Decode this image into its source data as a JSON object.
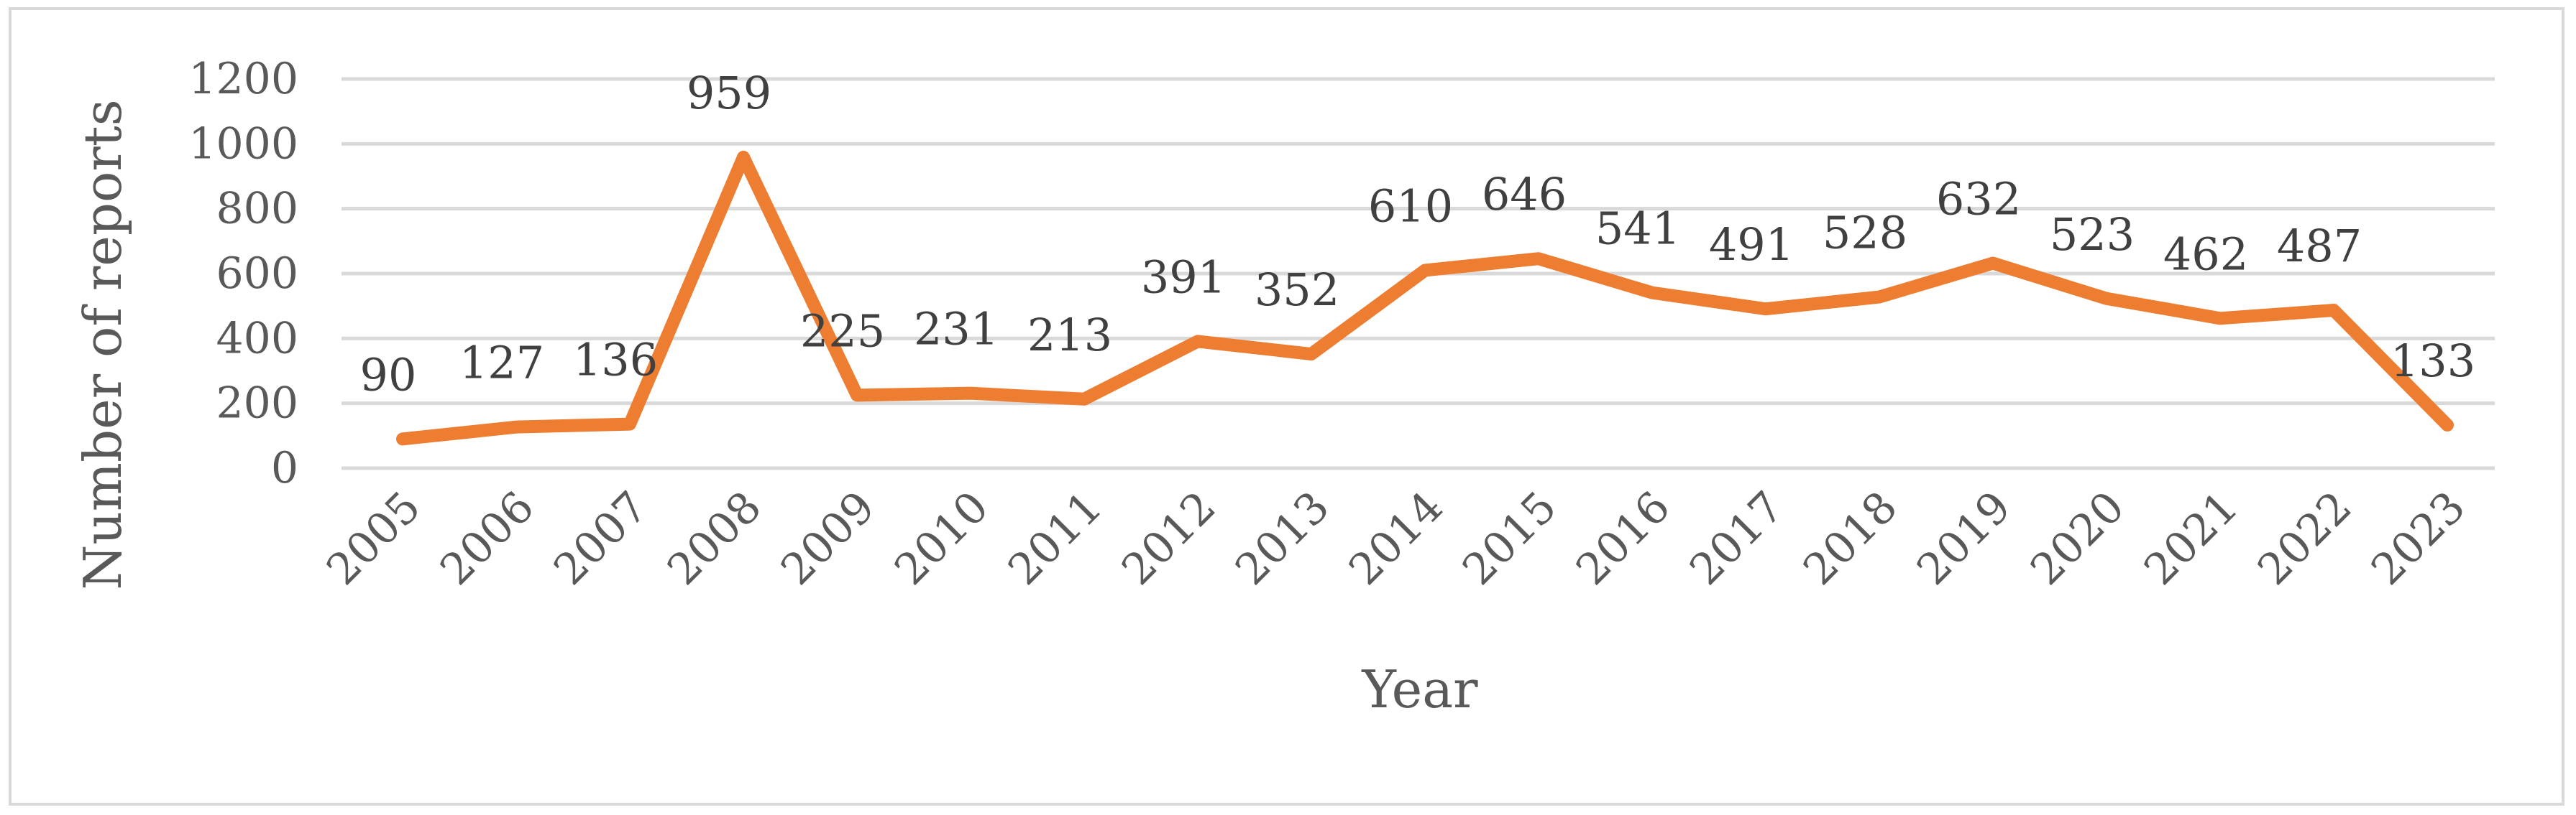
{
  "chart_data": {
    "type": "line",
    "title": "",
    "xlabel": "Year",
    "ylabel": "Number of reports",
    "ylim": [
      0,
      1200
    ],
    "yticks": [
      0,
      200,
      400,
      600,
      800,
      1000,
      1200
    ],
    "grid": true,
    "legend": "none",
    "line_color": "#ed7d31",
    "grid_color": "#d9d9d9",
    "categories": [
      "2005",
      "2006",
      "2007",
      "2008",
      "2009",
      "2010",
      "2011",
      "2012",
      "2013",
      "2014",
      "2015",
      "2016",
      "2017",
      "2018",
      "2019",
      "2020",
      "2021",
      "2022",
      "2023"
    ],
    "series": [
      {
        "values": [
          90,
          127,
          136,
          959,
          225,
          231,
          213,
          391,
          352,
          610,
          646,
          541,
          491,
          528,
          632,
          523,
          462,
          487,
          133
        ]
      }
    ]
  }
}
